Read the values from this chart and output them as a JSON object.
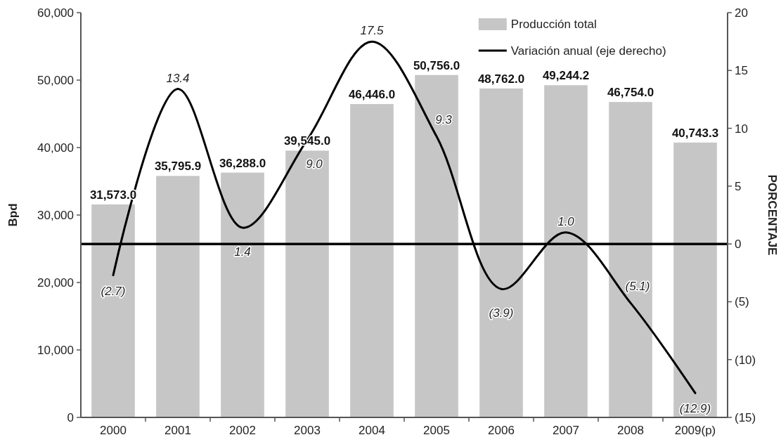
{
  "chart_data": {
    "type": "bar",
    "categories": [
      "2000",
      "2001",
      "2002",
      "2003",
      "2004",
      "2005",
      "2006",
      "2007",
      "2008",
      "2009(p)"
    ],
    "series": [
      {
        "name": "Producción total",
        "color": "#c6c6c6",
        "values": [
          31573.0,
          35795.9,
          36288.0,
          39545.0,
          46446.0,
          50756.0,
          48762.0,
          49244.2,
          46754.0,
          40743.3
        ],
        "value_labels": [
          "31,573.0",
          "35,795.9",
          "36,288.0",
          "39,545.0",
          "46,446.0",
          "50,756.0",
          "48,762.0",
          "49,244.2",
          "46,754.0",
          "40,743.3"
        ]
      },
      {
        "name": "Variación anual (eje derecho)",
        "type": "line",
        "axis": "y2",
        "color": "#000000",
        "values": [
          -2.7,
          13.4,
          1.4,
          9.0,
          17.5,
          9.3,
          -3.9,
          1.0,
          -5.1,
          -12.9
        ],
        "value_labels": [
          "(2.7)",
          "13.4",
          "1.4",
          "9.0",
          "17.5",
          "9.3",
          "(3.9)",
          "1.0",
          "(5.1)",
          "(12.9)"
        ]
      }
    ],
    "ylabel": "Bpd",
    "y2label": "PORCENTAJE",
    "ylim": [
      0,
      60000
    ],
    "yticks": [
      {
        "value": 0,
        "label": "0"
      },
      {
        "value": 10000,
        "label": "10,000"
      },
      {
        "value": 20000,
        "label": "20,000"
      },
      {
        "value": 30000,
        "label": "30,000"
      },
      {
        "value": 40000,
        "label": "40,000"
      },
      {
        "value": 50000,
        "label": "50,000"
      },
      {
        "value": 60000,
        "label": "60,000"
      }
    ],
    "y2lim": [
      -15,
      20
    ],
    "y2ticks": [
      {
        "value": -15,
        "label": "(15)"
      },
      {
        "value": -10,
        "label": "(10)"
      },
      {
        "value": -5,
        "label": "(5)"
      },
      0,
      5,
      10,
      15,
      20
    ],
    "ref_lines": [
      {
        "axis": "y2",
        "value": 0,
        "color": "#000000"
      }
    ],
    "legend": "top right"
  }
}
